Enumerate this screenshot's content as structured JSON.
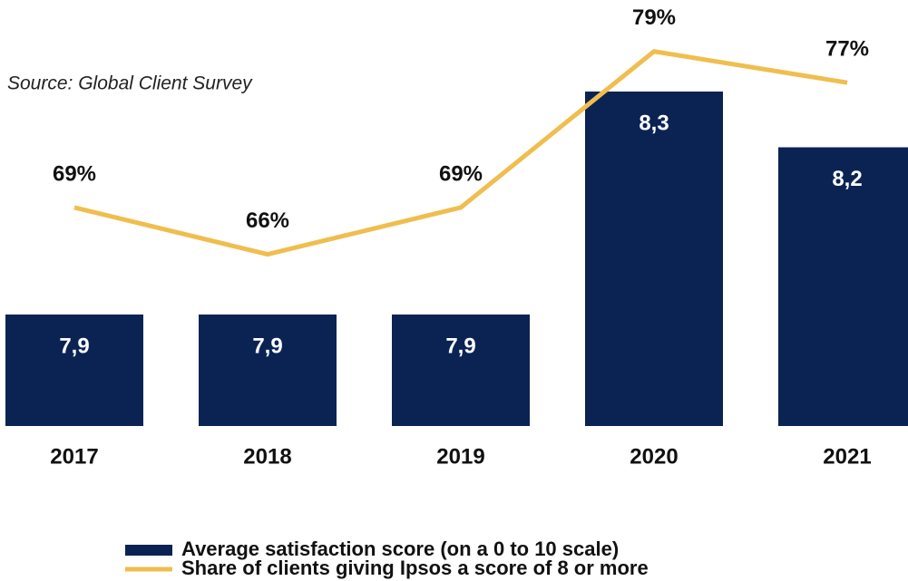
{
  "chart_data": {
    "type": "bar",
    "source": "Source: Global Client Survey",
    "categories": [
      "2017",
      "2018",
      "2019",
      "2020",
      "2021"
    ],
    "series": [
      {
        "name": "Average satisfaction score (on a 0 to 10 scale)",
        "color": "#0b2353",
        "values": [
          7.9,
          7.9,
          7.9,
          8.3,
          8.2
        ],
        "value_labels": [
          "7,9",
          "7,9",
          "7,9",
          "8,3",
          "8,2"
        ]
      },
      {
        "name": "Share of clients giving Ipsos a score of 8 or more",
        "color": "#efbe4e",
        "axis": "y2",
        "values": [
          69,
          66,
          69,
          79,
          77
        ],
        "value_labels": [
          "69%",
          "66%",
          "69%",
          "79%",
          "77%"
        ]
      }
    ],
    "ylim": [
      7.7,
      8.4
    ],
    "y2lim": [
      55,
      80
    ],
    "legend": "bottom"
  }
}
